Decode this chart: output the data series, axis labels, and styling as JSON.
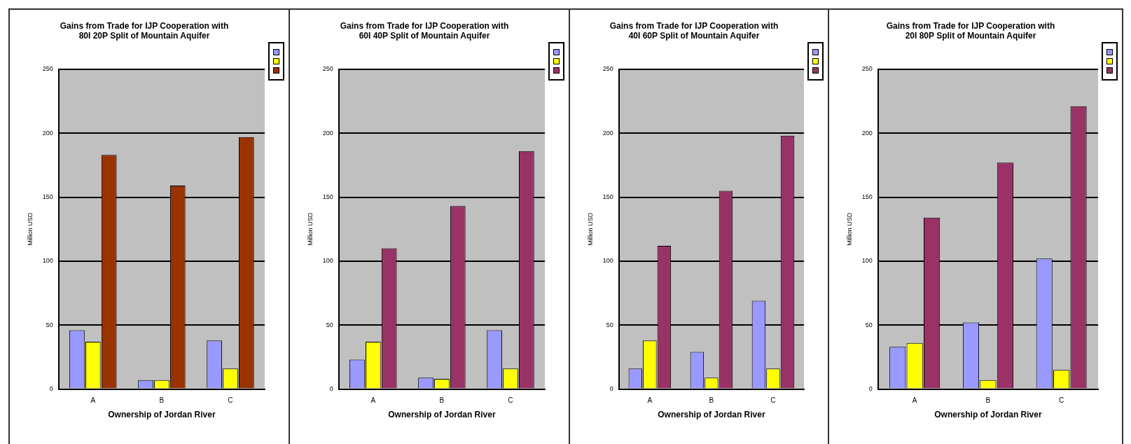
{
  "chart_data": [
    {
      "type": "bar",
      "title": "Gains from Trade for IJP Cooperation with 80I 20P Split of Mountain Aquifer",
      "xlabel": "Ownership of Jordan River",
      "ylabel": "Million USD",
      "categories": [
        "A",
        "B",
        "C"
      ],
      "series": [
        {
          "color": "#9999ff",
          "values": [
            46,
            7,
            38
          ]
        },
        {
          "color": "#ffff00",
          "values": [
            37,
            7,
            16
          ]
        },
        {
          "color": "#993300",
          "values": [
            183,
            159,
            197
          ]
        }
      ],
      "ylim": [
        0,
        250
      ],
      "yticks": [
        0,
        50,
        100,
        150,
        200,
        250
      ],
      "grid": "y"
    },
    {
      "type": "bar",
      "title": "Gains from Trade for IJP Cooperation with 60I 40P Split of Mountain Aquifer",
      "xlabel": "Ownership of Jordan River",
      "ylabel": "Million USD",
      "categories": [
        "A",
        "B",
        "C"
      ],
      "series": [
        {
          "color": "#9999ff",
          "values": [
            23,
            9,
            46
          ]
        },
        {
          "color": "#ffff00",
          "values": [
            37,
            8,
            16
          ]
        },
        {
          "color": "#993366",
          "values": [
            110,
            143,
            186
          ]
        }
      ],
      "ylim": [
        0,
        250
      ],
      "yticks": [
        0,
        50,
        100,
        150,
        200,
        250
      ],
      "grid": "y"
    },
    {
      "type": "bar",
      "title": "Gains from Trade for IJP Cooperation with 40I 60P Split of Mountain Aquifer",
      "xlabel": "Ownership of Jordan River",
      "ylabel": "Million USD",
      "categories": [
        "A",
        "B",
        "C"
      ],
      "series": [
        {
          "color": "#9999ff",
          "values": [
            16,
            29,
            69
          ]
        },
        {
          "color": "#ffff00",
          "values": [
            38,
            9,
            16
          ]
        },
        {
          "color": "#993366",
          "values": [
            112,
            155,
            198
          ]
        }
      ],
      "ylim": [
        0,
        250
      ],
      "yticks": [
        0,
        50,
        100,
        150,
        200,
        250
      ],
      "grid": "y"
    },
    {
      "type": "bar",
      "title": "Gains from Trade for IJP Cooperation with 20I 80P Split of Mountain Aquifer",
      "xlabel": "Ownership of Jordan River",
      "ylabel": "Million USD",
      "categories": [
        "A",
        "B",
        "C"
      ],
      "series": [
        {
          "color": "#9999ff",
          "values": [
            33,
            52,
            102
          ]
        },
        {
          "color": "#ffff00",
          "values": [
            36,
            7,
            15
          ]
        },
        {
          "color": "#993366",
          "values": [
            134,
            177,
            221
          ]
        }
      ],
      "ylim": [
        0,
        250
      ],
      "yticks": [
        0,
        50,
        100,
        150,
        200,
        250
      ],
      "grid": "y"
    }
  ]
}
